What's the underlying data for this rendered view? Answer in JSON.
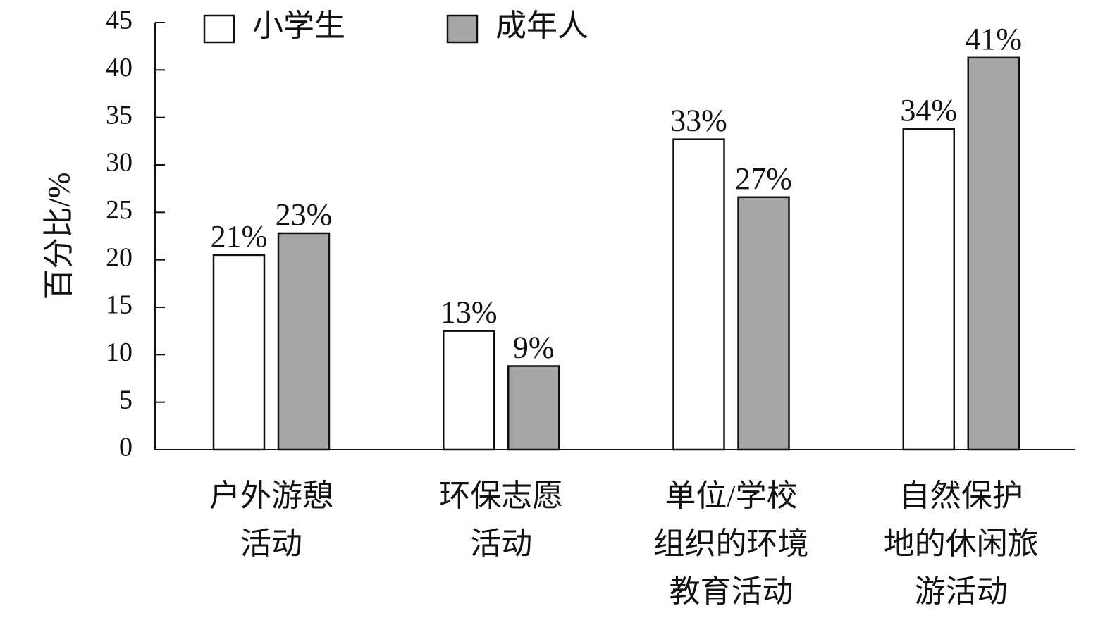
{
  "chart_data": {
    "type": "bar",
    "title": "",
    "xlabel": "",
    "ylabel": "百分比/%",
    "ylim": [
      0,
      45
    ],
    "yticks": [
      0,
      5,
      10,
      15,
      20,
      25,
      30,
      35,
      40,
      45
    ],
    "grid": false,
    "legend_position": "top-left",
    "categories": [
      [
        "户外游憩",
        "活动"
      ],
      [
        "环保志愿",
        "活动"
      ],
      [
        "单位/学校",
        "组织的环境",
        "教育活动"
      ],
      [
        "自然保护",
        "地的休闲旅",
        "游活动"
      ]
    ],
    "series": [
      {
        "name": "小学生",
        "color": "#ffffff",
        "values": [
          20.5,
          12.5,
          32.7,
          33.8
        ],
        "labels": [
          "21%",
          "13%",
          "33%",
          "34%"
        ]
      },
      {
        "name": "成年人",
        "color": "#a6a6a6",
        "values": [
          22.8,
          8.8,
          26.6,
          41.3
        ],
        "labels": [
          "23%",
          "9%",
          "27%",
          "41%"
        ]
      }
    ]
  }
}
